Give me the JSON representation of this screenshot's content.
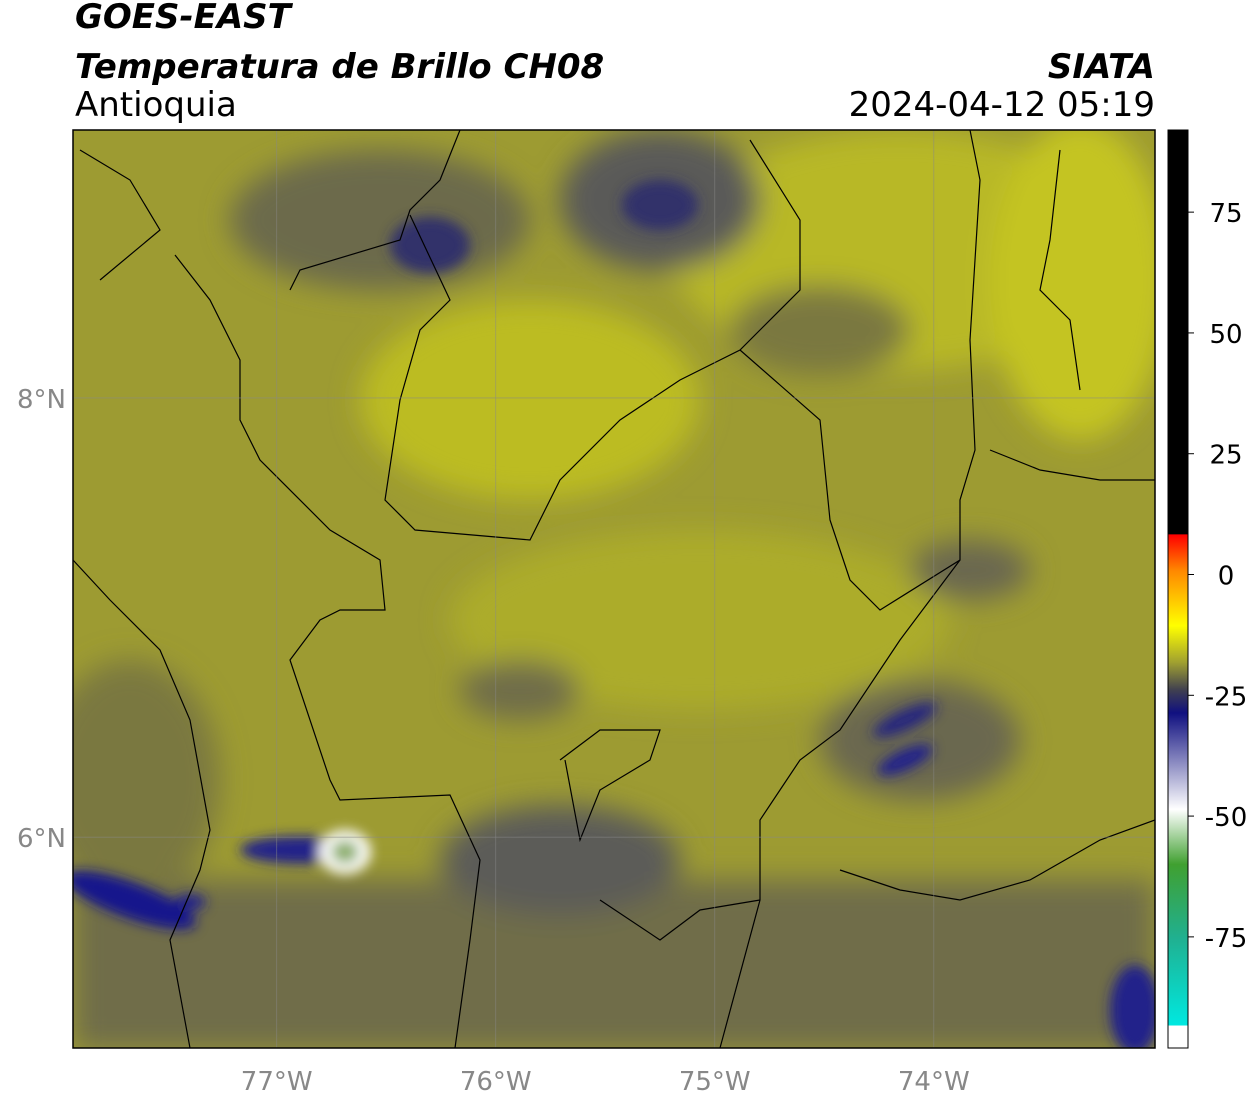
{
  "header": {
    "satellite": "GOES-EAST",
    "product": "Temperatura de Brillo CH08",
    "region": "Antioquia",
    "agency": "SIATA",
    "datetime": "2024-04-12 05:19"
  },
  "map": {
    "xlim": [
      -77.93,
      -72.99
    ],
    "ylim": [
      5.04,
      9.22
    ],
    "xticks": [
      {
        "value": -77,
        "label": "77°W"
      },
      {
        "value": -76,
        "label": "76°W"
      },
      {
        "value": -75,
        "label": "75°W"
      },
      {
        "value": -74,
        "label": "74°W"
      }
    ],
    "yticks": [
      {
        "value": 8,
        "label": "8°N"
      },
      {
        "value": 6,
        "label": "6°N"
      }
    ],
    "grid": true
  },
  "colorbar": {
    "lim": [
      -98,
      92
    ],
    "ticks": [
      75,
      50,
      25,
      0,
      -25,
      -50,
      -75
    ]
  }
}
